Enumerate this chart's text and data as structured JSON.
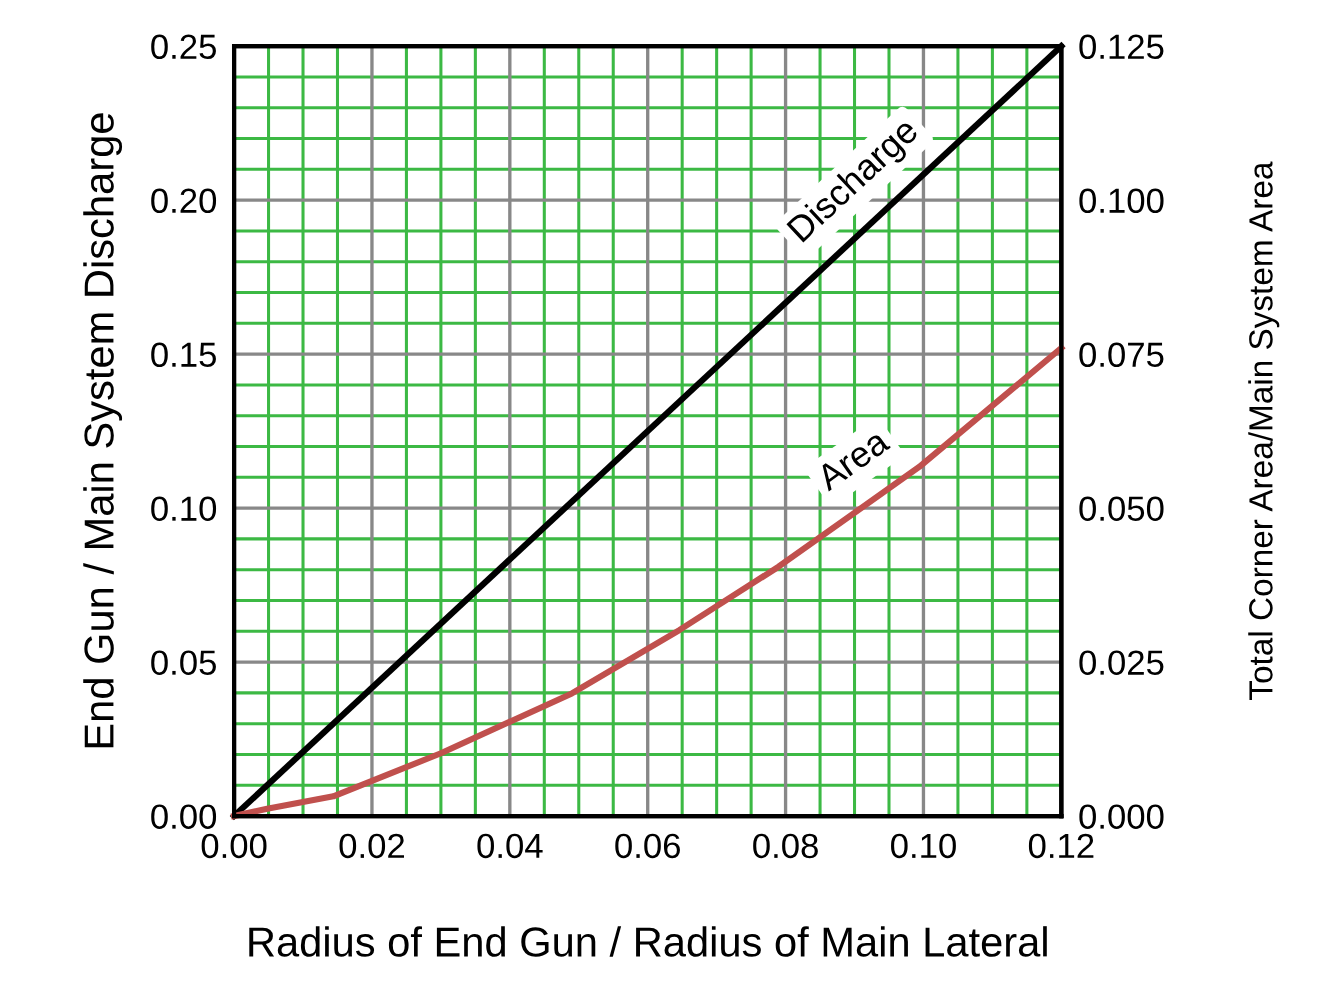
{
  "chart_data": {
    "type": "line",
    "xlabel": "Radius of End Gun / Radius of Main Lateral",
    "ylabel": "End Gun / Main System Discharge",
    "y2label": "Total Corner Area/Main System Area",
    "series": [
      {
        "name": "Discharge",
        "color": "#000000",
        "x": [
          0,
          0.12
        ],
        "values": [
          0,
          0.25
        ]
      },
      {
        "name": "Area",
        "color": "#c0504d",
        "axis": "y2",
        "x": [
          0,
          0.0048,
          0.0144,
          0.03,
          0.049,
          0.0646,
          0.079,
          0.0994,
          0.12
        ],
        "values": [
          0,
          0.0012,
          0.0032,
          0.0102,
          0.0199,
          0.0302,
          0.0405,
          0.0567,
          0.076
        ]
      }
    ],
    "xlim": [
      0,
      0.12
    ],
    "xticks": [
      {
        "value": 0,
        "label": "0.00"
      },
      {
        "value": 0.005,
        "label": null
      },
      {
        "value": 0.01,
        "label": null
      },
      {
        "value": 0.015,
        "label": null
      },
      {
        "value": 0.02,
        "label": "0.02"
      },
      {
        "value": 0.025,
        "label": null
      },
      {
        "value": 0.03,
        "label": null
      },
      {
        "value": 0.035,
        "label": null
      },
      {
        "value": 0.04,
        "label": "0.04"
      },
      {
        "value": 0.045,
        "label": null
      },
      {
        "value": 0.05,
        "label": null
      },
      {
        "value": 0.055,
        "label": null
      },
      {
        "value": 0.06,
        "label": "0.06"
      },
      {
        "value": 0.065,
        "label": null
      },
      {
        "value": 0.07,
        "label": null
      },
      {
        "value": 0.075,
        "label": null
      },
      {
        "value": 0.08,
        "label": "0.08"
      },
      {
        "value": 0.085,
        "label": null
      },
      {
        "value": 0.09,
        "label": null
      },
      {
        "value": 0.095,
        "label": null
      },
      {
        "value": 0.1,
        "label": "0.10"
      },
      {
        "value": 0.105,
        "label": null
      },
      {
        "value": 0.11,
        "label": null
      },
      {
        "value": 0.115,
        "label": null
      },
      {
        "value": 0.12,
        "label": "0.12"
      }
    ],
    "ylim": [
      0,
      0.25
    ],
    "yticks": [
      {
        "value": 0,
        "label": "0.00"
      },
      {
        "value": 0.01,
        "label": null
      },
      {
        "value": 0.02,
        "label": null
      },
      {
        "value": 0.03,
        "label": null
      },
      {
        "value": 0.04,
        "label": null
      },
      {
        "value": 0.05,
        "label": "0.05"
      },
      {
        "value": 0.06,
        "label": null
      },
      {
        "value": 0.07,
        "label": null
      },
      {
        "value": 0.08,
        "label": null
      },
      {
        "value": 0.09,
        "label": null
      },
      {
        "value": 0.1,
        "label": "0.10"
      },
      {
        "value": 0.11,
        "label": null
      },
      {
        "value": 0.12,
        "label": null
      },
      {
        "value": 0.13,
        "label": null
      },
      {
        "value": 0.14,
        "label": null
      },
      {
        "value": 0.15,
        "label": "0.15"
      },
      {
        "value": 0.16,
        "label": null
      },
      {
        "value": 0.17,
        "label": null
      },
      {
        "value": 0.18,
        "label": null
      },
      {
        "value": 0.19,
        "label": null
      },
      {
        "value": 0.2,
        "label": "0.20"
      },
      {
        "value": 0.21,
        "label": null
      },
      {
        "value": 0.22,
        "label": null
      },
      {
        "value": 0.23,
        "label": null
      },
      {
        "value": 0.24,
        "label": null
      },
      {
        "value": 0.25,
        "label": "0.25"
      }
    ],
    "y2lim": [
      0,
      0.125
    ],
    "y2ticks": [
      {
        "value": 0,
        "label": "0.000"
      },
      {
        "value": 0.025,
        "label": "0.025"
      },
      {
        "value": 0.05,
        "label": "0.050"
      },
      {
        "value": 0.075,
        "label": "0.075"
      },
      {
        "value": 0.1,
        "label": "0.100"
      },
      {
        "value": 0.125,
        "label": "0.125"
      }
    ],
    "grid": true,
    "legend": false,
    "marker": "none",
    "line_style": "solid"
  }
}
